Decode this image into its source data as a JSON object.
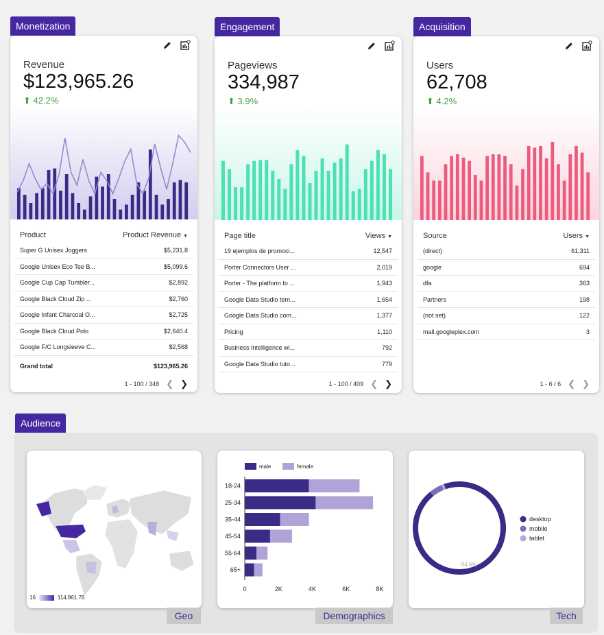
{
  "sections": {
    "monetization": "Monetization",
    "engagement": "Engagement",
    "acquisition": "Acquisition",
    "audience": "Audience"
  },
  "colors": {
    "brand": "#4527a0",
    "revenue_bar": "#3a2b86",
    "engagement_bar": "#4ee0b5",
    "acquisition_bar": "#ec5b7d",
    "positive": "#43a047"
  },
  "cards": [
    {
      "id": "monetization",
      "metric_label": "Revenue",
      "metric_value": "$123,965.26",
      "change": "42.2%",
      "table": {
        "col1": "Product",
        "col2": "Product Revenue",
        "rows": [
          [
            "Super G Unisex Joggers",
            "$5,231.8"
          ],
          [
            "Google Unisex Eco Tee B...",
            "$5,099.6"
          ],
          [
            "Google Cup Cap Tumbler...",
            "$2,892"
          ],
          [
            "Google Black Cloud Zip ...",
            "$2,760"
          ],
          [
            "Google Infant Charcoal O...",
            "$2,725"
          ],
          [
            "Google Black Cloud Polo",
            "$2,640.4"
          ],
          [
            "Google F/C Longsleeve C...",
            "$2,568"
          ]
        ],
        "total_label": "Grand total",
        "total_value": "$123,965.26",
        "pagination": "1 - 100 / 348"
      }
    },
    {
      "id": "engagement",
      "metric_label": "Pageviews",
      "metric_value": "334,987",
      "change": "3.9%",
      "table": {
        "col1": "Page title",
        "col2": "Views",
        "rows": [
          [
            "19 ejemplos de promoci...",
            "12,547"
          ],
          [
            "Porter Connectors User ...",
            "2,019"
          ],
          [
            "Porter - The platform to ...",
            "1,943"
          ],
          [
            "Google Data Studio tem...",
            "1,654"
          ],
          [
            "Google Data Studio com...",
            "1,377"
          ],
          [
            "Pricing",
            "1,110"
          ],
          [
            "Business Intelligence wi...",
            "792"
          ],
          [
            "Google Data Studio tuto...",
            "779"
          ]
        ],
        "pagination": "1 - 100 / 409"
      }
    },
    {
      "id": "acquisition",
      "metric_label": "Users",
      "metric_value": "62,708",
      "change": "4.2%",
      "table": {
        "col1": "Source",
        "col2": "Users",
        "rows": [
          [
            "(direct)",
            "61,311"
          ],
          [
            "google",
            "694"
          ],
          [
            "dfa",
            "363"
          ],
          [
            "Partners",
            "198"
          ],
          [
            "(not set)",
            "122"
          ],
          [
            "mall.googleplex.com",
            "3"
          ]
        ],
        "pagination": "1 - 6 / 6"
      }
    }
  ],
  "sparklines": {
    "revenue_bars": [
      0.38,
      0.3,
      0.2,
      0.32,
      0.38,
      0.6,
      0.62,
      0.35,
      0.55,
      0.32,
      0.2,
      0.12,
      0.28,
      0.52,
      0.4,
      0.55,
      0.25,
      0.12,
      0.18,
      0.3,
      0.45,
      0.35,
      0.85,
      0.3,
      0.18,
      0.25,
      0.45,
      0.48,
      0.45
    ],
    "revenue_line": [
      0.32,
      0.45,
      0.65,
      0.48,
      0.35,
      0.42,
      0.3,
      0.52,
      0.95,
      0.55,
      0.4,
      0.7,
      0.45,
      0.3,
      0.55,
      0.45,
      0.3,
      0.48,
      0.68,
      0.82,
      0.42,
      0.3,
      0.48,
      0.88,
      0.6,
      0.35,
      0.65,
      0.98,
      0.9,
      0.78
    ],
    "engagement_bars": [
      0.72,
      0.62,
      0.4,
      0.4,
      0.68,
      0.72,
      0.73,
      0.73,
      0.6,
      0.5,
      0.38,
      0.68,
      0.85,
      0.78,
      0.45,
      0.6,
      0.75,
      0.6,
      0.7,
      0.75,
      0.92,
      0.35,
      0.38,
      0.62,
      0.72,
      0.85,
      0.8,
      0.62
    ],
    "acquisition_bars": [
      0.78,
      0.58,
      0.48,
      0.48,
      0.68,
      0.78,
      0.8,
      0.76,
      0.72,
      0.55,
      0.48,
      0.78,
      0.8,
      0.8,
      0.78,
      0.68,
      0.42,
      0.62,
      0.9,
      0.88,
      0.9,
      0.75,
      0.95,
      0.68,
      0.48,
      0.8,
      0.9,
      0.82,
      0.58
    ]
  },
  "audience": {
    "geo": {
      "tab": "Geo",
      "legend_min": "16",
      "legend_max": "114,861.76"
    },
    "demographics": {
      "tab": "Demographics"
    },
    "tech": {
      "tab": "Tech",
      "center_label": "94.6%"
    }
  },
  "chart_data": [
    {
      "type": "bar",
      "orientation": "horizontal",
      "stacked": true,
      "categories": [
        "18-24",
        "25-34",
        "35-44",
        "45-54",
        "55-64",
        "65+"
      ],
      "series": [
        {
          "name": "male",
          "values": [
            3800,
            4200,
            2100,
            1500,
            700,
            550
          ],
          "color": "#3a2b86"
        },
        {
          "name": "female",
          "values": [
            3000,
            3400,
            1700,
            1300,
            650,
            500
          ],
          "color": "#b1a2d8"
        }
      ],
      "xlim": [
        0,
        8000
      ],
      "x_ticks": [
        "0",
        "2K",
        "4K",
        "6K",
        "8K"
      ],
      "legend": "top"
    },
    {
      "type": "pie",
      "donut": true,
      "labels": [
        "desktop",
        "mobile",
        "tablet"
      ],
      "values": [
        94.6,
        4.6,
        0.8
      ],
      "colors": [
        "#3a2b86",
        "#7d6bb8",
        "#b5a9d6"
      ],
      "legend": "right"
    }
  ]
}
